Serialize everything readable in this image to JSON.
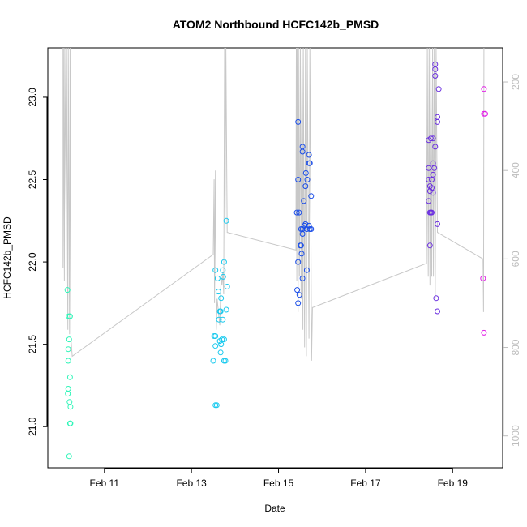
{
  "chart_data": {
    "type": "scatter",
    "title": "ATOM2 Northbound HCFC142b_PMSD",
    "xlabel": "Date",
    "ylabel": "HCFC142b_PMSD",
    "x_tick_labels": [
      "Feb 11",
      "Feb 13",
      "Feb 15",
      "Feb 17",
      "Feb 19"
    ],
    "x_tick_values": [
      11,
      13,
      15,
      17,
      19
    ],
    "xlim": [
      9.7,
      20.15
    ],
    "ylim": [
      20.75,
      23.3
    ],
    "y_ticks": [
      21.0,
      21.5,
      22.0,
      22.5,
      23.0
    ],
    "y_tick_labels": [
      "21.0",
      "21.5",
      "22.0",
      "22.5",
      "23.0"
    ],
    "right_axis": {
      "label": "",
      "ticks": [
        200,
        400,
        600,
        800,
        1000
      ],
      "tick_labels": [
        "200",
        "400",
        "600",
        "800",
        "1000"
      ],
      "lim_top": 123,
      "lim_bottom": 1072,
      "reversed": true,
      "color": "#bdbdbd"
    },
    "grid": false,
    "series": [
      {
        "color": "#2ff5b8",
        "points": [
          [
            10.15,
            21.83
          ],
          [
            10.18,
            21.67
          ],
          [
            10.21,
            21.67
          ],
          [
            10.17,
            21.47
          ],
          [
            10.19,
            21.53
          ],
          [
            10.17,
            21.4
          ],
          [
            10.21,
            21.3
          ],
          [
            10.17,
            21.23
          ],
          [
            10.16,
            21.2
          ],
          [
            10.2,
            21.15
          ],
          [
            10.22,
            21.12
          ],
          [
            10.21,
            21.02
          ],
          [
            10.22,
            21.02
          ],
          [
            10.19,
            20.82
          ]
        ]
      },
      {
        "color": "#17c9ee",
        "points": [
          [
            13.8,
            22.25
          ],
          [
            13.75,
            22.0
          ],
          [
            13.55,
            21.95
          ],
          [
            13.72,
            21.95
          ],
          [
            13.6,
            21.9
          ],
          [
            13.73,
            21.91
          ],
          [
            13.82,
            21.85
          ],
          [
            13.62,
            21.82
          ],
          [
            13.68,
            21.78
          ],
          [
            13.8,
            21.71
          ],
          [
            13.65,
            21.7
          ],
          [
            13.67,
            21.7
          ],
          [
            13.63,
            21.65
          ],
          [
            13.72,
            21.65
          ],
          [
            13.52,
            21.55
          ],
          [
            13.55,
            21.55
          ],
          [
            13.7,
            21.53
          ],
          [
            13.75,
            21.53
          ],
          [
            13.65,
            21.52
          ],
          [
            13.68,
            21.5
          ],
          [
            13.55,
            21.49
          ],
          [
            13.67,
            21.45
          ],
          [
            13.5,
            21.4
          ],
          [
            13.75,
            21.4
          ],
          [
            13.78,
            21.4
          ],
          [
            13.55,
            21.13
          ],
          [
            13.58,
            21.13
          ]
        ]
      },
      {
        "color": "#1a4de8",
        "points": [
          [
            15.45,
            22.85
          ],
          [
            15.55,
            22.7
          ],
          [
            15.55,
            22.67
          ],
          [
            15.7,
            22.65
          ],
          [
            15.7,
            22.6
          ],
          [
            15.72,
            22.6
          ],
          [
            15.63,
            22.54
          ],
          [
            15.45,
            22.5
          ],
          [
            15.66,
            22.5
          ],
          [
            15.62,
            22.46
          ],
          [
            15.75,
            22.4
          ],
          [
            15.58,
            22.37
          ],
          [
            15.42,
            22.3
          ],
          [
            15.47,
            22.3
          ],
          [
            15.62,
            22.23
          ],
          [
            15.6,
            22.22
          ],
          [
            15.7,
            22.22
          ],
          [
            15.65,
            22.2
          ],
          [
            15.72,
            22.2
          ],
          [
            15.75,
            22.2
          ],
          [
            15.52,
            22.2
          ],
          [
            15.55,
            22.2
          ],
          [
            15.55,
            22.17
          ],
          [
            15.5,
            22.1
          ],
          [
            15.52,
            22.1
          ],
          [
            15.53,
            22.05
          ],
          [
            15.45,
            22.0
          ],
          [
            15.65,
            21.95
          ],
          [
            15.55,
            21.9
          ],
          [
            15.43,
            21.83
          ],
          [
            15.48,
            21.8
          ],
          [
            15.45,
            21.75
          ]
        ]
      },
      {
        "color": "#6b2fe0",
        "points": [
          [
            18.6,
            23.2
          ],
          [
            18.6,
            23.17
          ],
          [
            18.6,
            23.13
          ],
          [
            18.68,
            23.05
          ],
          [
            18.65,
            22.88
          ],
          [
            18.65,
            22.85
          ],
          [
            18.5,
            22.75
          ],
          [
            18.55,
            22.75
          ],
          [
            18.45,
            22.74
          ],
          [
            18.6,
            22.7
          ],
          [
            18.55,
            22.6
          ],
          [
            18.58,
            22.57
          ],
          [
            18.45,
            22.57
          ],
          [
            18.55,
            22.53
          ],
          [
            18.45,
            22.5
          ],
          [
            18.52,
            22.5
          ],
          [
            18.48,
            22.46
          ],
          [
            18.52,
            22.45
          ],
          [
            18.48,
            22.43
          ],
          [
            18.55,
            22.42
          ],
          [
            18.45,
            22.37
          ],
          [
            18.48,
            22.3
          ],
          [
            18.5,
            22.3
          ],
          [
            18.52,
            22.3
          ],
          [
            18.65,
            22.23
          ],
          [
            18.48,
            22.1
          ],
          [
            18.62,
            21.78
          ],
          [
            18.65,
            21.7
          ]
        ]
      },
      {
        "color": "#e21be6",
        "points": [
          [
            19.72,
            23.05
          ],
          [
            19.72,
            22.9
          ],
          [
            19.75,
            22.9
          ],
          [
            19.7,
            21.9
          ],
          [
            19.72,
            21.57
          ]
        ]
      }
    ],
    "depth_line": {
      "color": "#c8c8c8",
      "points": [
        [
          10.05,
          123
        ],
        [
          10.05,
          620
        ],
        [
          10.06,
          123
        ],
        [
          10.08,
          650
        ],
        [
          10.09,
          123
        ],
        [
          10.12,
          500
        ],
        [
          10.13,
          123
        ],
        [
          10.16,
          760
        ],
        [
          10.17,
          123
        ],
        [
          10.2,
          770
        ],
        [
          10.21,
          123
        ],
        [
          10.23,
          780
        ],
        [
          10.26,
          820
        ],
        [
          13.5,
          590
        ],
        [
          13.52,
          420
        ],
        [
          13.53,
          700
        ],
        [
          13.55,
          400
        ],
        [
          13.57,
          760
        ],
        [
          13.59,
          690
        ],
        [
          13.62,
          720
        ],
        [
          13.65,
          750
        ],
        [
          13.68,
          640
        ],
        [
          13.7,
          660
        ],
        [
          13.72,
          630
        ],
        [
          13.74,
          680
        ],
        [
          13.76,
          123
        ],
        [
          13.77,
          560
        ],
        [
          13.79,
          123
        ],
        [
          13.82,
          540
        ],
        [
          15.4,
          580
        ],
        [
          15.41,
          123
        ],
        [
          15.42,
          650
        ],
        [
          15.43,
          123
        ],
        [
          15.45,
          720
        ],
        [
          15.46,
          123
        ],
        [
          15.48,
          640
        ],
        [
          15.5,
          123
        ],
        [
          15.52,
          690
        ],
        [
          15.54,
          123
        ],
        [
          15.56,
          760
        ],
        [
          15.57,
          123
        ],
        [
          15.6,
          800
        ],
        [
          15.62,
          123
        ],
        [
          15.64,
          820
        ],
        [
          15.66,
          123
        ],
        [
          15.7,
          780
        ],
        [
          15.72,
          123
        ],
        [
          15.76,
          830
        ],
        [
          15.78,
          710
        ],
        [
          18.4,
          610
        ],
        [
          18.42,
          123
        ],
        [
          18.44,
          640
        ],
        [
          18.46,
          123
        ],
        [
          18.48,
          660
        ],
        [
          18.5,
          123
        ],
        [
          18.52,
          640
        ],
        [
          18.54,
          123
        ],
        [
          18.56,
          640
        ],
        [
          18.58,
          123
        ],
        [
          18.6,
          690
        ],
        [
          18.62,
          123
        ],
        [
          18.65,
          540
        ],
        [
          19.7,
          600
        ],
        [
          19.71,
          720
        ],
        [
          19.72,
          123
        ]
      ]
    }
  }
}
